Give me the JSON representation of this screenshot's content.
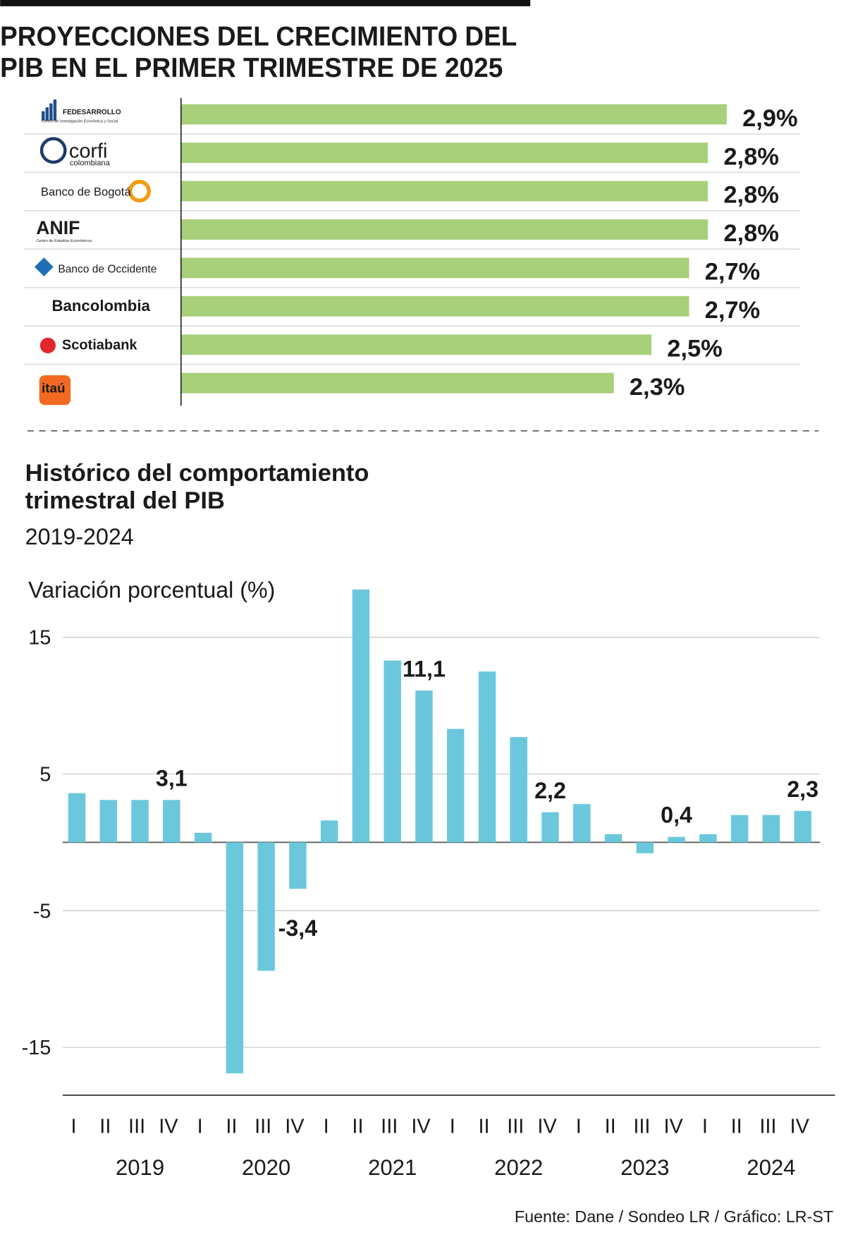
{
  "chart_data": [
    {
      "type": "hbar",
      "title": [
        "PROYECCIONES DEL CRECIMIENTO DEL",
        "PIB EN EL PRIMER TRIMESTRE DE 2025"
      ],
      "categories": [
        "FEDESARROLLO",
        "corfi",
        "Banco de Bogotá",
        "ANIF",
        "Banco de Occidente",
        "Bancolombia",
        "Scotiabank",
        "itaú"
      ],
      "logo_subtexts": [
        "Centro de Investigación Económica y Social",
        "colombiana",
        null,
        "Centro de Estudios Económicos",
        null,
        null,
        null,
        null
      ],
      "values": [
        2.9,
        2.8,
        2.8,
        2.8,
        2.7,
        2.7,
        2.5,
        2.3
      ],
      "value_labels": [
        "2,9%",
        "2,8%",
        "2,8%",
        "2,8%",
        "2,7%",
        "2,7%",
        "2,5%",
        "2,3%"
      ],
      "color": "#a8cf7a"
    },
    {
      "type": "bar",
      "title": [
        "Histórico del comportamiento",
        "trimestral del PIB"
      ],
      "subtitle": "2019-2024",
      "ylabel": "Variación porcentual (%)",
      "categories": [
        "I",
        "II",
        "III",
        "IV",
        "I",
        "II",
        "III",
        "IV",
        "I",
        "II",
        "III",
        "IV",
        "I",
        "II",
        "III",
        "IV",
        "I",
        "II",
        "III",
        "IV",
        "I",
        "II",
        "III",
        "IV"
      ],
      "years": [
        "2019",
        "2020",
        "2021",
        "2022",
        "2023",
        "2024"
      ],
      "values": [
        3.6,
        3.1,
        3.1,
        3.1,
        0.7,
        -16.9,
        -9.4,
        -3.4,
        1.6,
        18.5,
        13.3,
        11.1,
        8.3,
        12.5,
        7.7,
        2.2,
        2.8,
        0.6,
        -0.8,
        0.4,
        0.6,
        2.0,
        2.0,
        2.3
      ],
      "value_labels": [
        null,
        null,
        null,
        "3,1",
        null,
        null,
        null,
        "-3,4",
        null,
        null,
        null,
        "11,1",
        null,
        null,
        null,
        "2,2",
        null,
        null,
        null,
        "0,4",
        null,
        null,
        null,
        "2,3"
      ],
      "color": "#6bc8dc",
      "ylim": [
        -18.5,
        19.5
      ],
      "yticks": [
        -15,
        -5,
        5,
        15
      ],
      "grid": true,
      "source": "Fuente: Dane / Sondeo LR / Gráfico: LR-ST"
    }
  ]
}
